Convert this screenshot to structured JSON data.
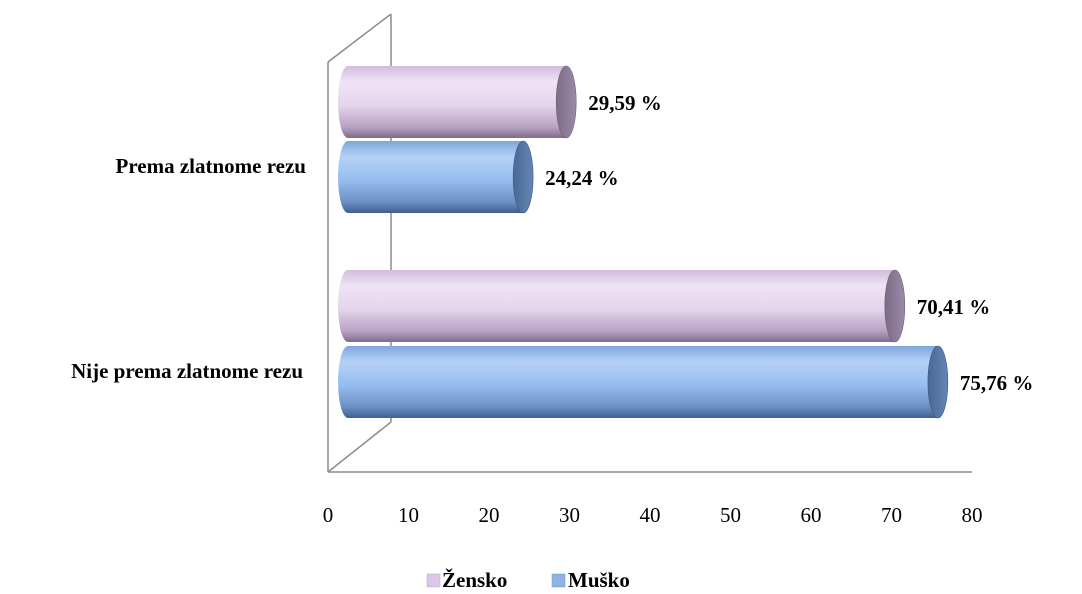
{
  "chart_data": {
    "type": "bar",
    "orientation": "horizontal",
    "style": "3d-cylinder",
    "categories": [
      "Prema zlatnome rezu",
      "Nije prema zlatnome rezu"
    ],
    "series": [
      {
        "name": "Žensko",
        "values": [
          29.59,
          70.41
        ],
        "labels": [
          "29,59 %",
          "70,41 %"
        ],
        "color": "#dcc8e6"
      },
      {
        "name": "Muško",
        "values": [
          24.24,
          75.76
        ],
        "labels": [
          "24,24 %",
          "75,76 %"
        ],
        "color": "#8fb4e3"
      }
    ],
    "xlim": [
      0,
      80
    ],
    "xticks": [
      "0",
      "10",
      "20",
      "30",
      "40",
      "50",
      "60",
      "70",
      "80"
    ],
    "grid": false,
    "legend_position": "bottom"
  }
}
